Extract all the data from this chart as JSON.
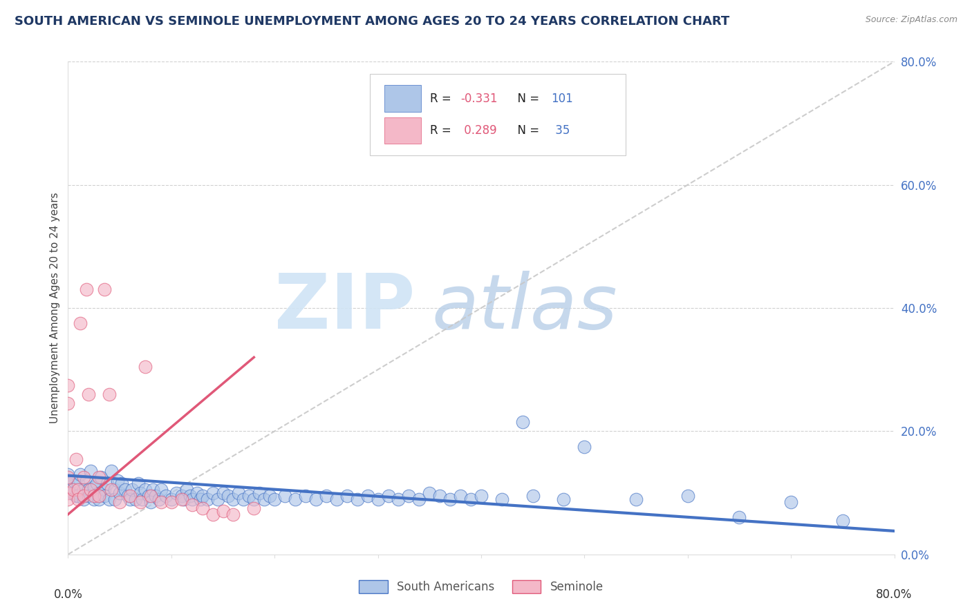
{
  "title": "SOUTH AMERICAN VS SEMINOLE UNEMPLOYMENT AMONG AGES 20 TO 24 YEARS CORRELATION CHART",
  "source": "Source: ZipAtlas.com",
  "ylabel": "Unemployment Among Ages 20 to 24 years",
  "south_american_color": "#aec6e8",
  "seminole_color": "#f4b8c8",
  "trend_sa_color": "#4472c4",
  "trend_sem_color": "#e05878",
  "watermark_zip": "ZIP",
  "watermark_atlas": "atlas",
  "xlim": [
    0.0,
    0.8
  ],
  "ylim": [
    0.0,
    0.8
  ],
  "legend_r1": "R = -0.331",
  "legend_n1": "N = 101",
  "legend_r2": "R =  0.289",
  "legend_n2": "N =  35",
  "legend_label1": "South Americans",
  "legend_label2": "Seminole",
  "south_american_points": [
    [
      0.0,
      0.13
    ],
    [
      0.0,
      0.115
    ],
    [
      0.003,
      0.1
    ],
    [
      0.005,
      0.12
    ],
    [
      0.005,
      0.1
    ],
    [
      0.008,
      0.095
    ],
    [
      0.01,
      0.115
    ],
    [
      0.01,
      0.095
    ],
    [
      0.012,
      0.13
    ],
    [
      0.015,
      0.105
    ],
    [
      0.015,
      0.09
    ],
    [
      0.018,
      0.12
    ],
    [
      0.02,
      0.105
    ],
    [
      0.02,
      0.095
    ],
    [
      0.022,
      0.135
    ],
    [
      0.025,
      0.11
    ],
    [
      0.025,
      0.09
    ],
    [
      0.028,
      0.115
    ],
    [
      0.03,
      0.1
    ],
    [
      0.03,
      0.09
    ],
    [
      0.032,
      0.125
    ],
    [
      0.035,
      0.105
    ],
    [
      0.035,
      0.095
    ],
    [
      0.038,
      0.115
    ],
    [
      0.04,
      0.09
    ],
    [
      0.042,
      0.135
    ],
    [
      0.045,
      0.105
    ],
    [
      0.045,
      0.09
    ],
    [
      0.048,
      0.12
    ],
    [
      0.05,
      0.1
    ],
    [
      0.052,
      0.115
    ],
    [
      0.055,
      0.105
    ],
    [
      0.058,
      0.095
    ],
    [
      0.06,
      0.09
    ],
    [
      0.062,
      0.105
    ],
    [
      0.065,
      0.09
    ],
    [
      0.068,
      0.115
    ],
    [
      0.07,
      0.1
    ],
    [
      0.072,
      0.09
    ],
    [
      0.075,
      0.105
    ],
    [
      0.078,
      0.095
    ],
    [
      0.08,
      0.085
    ],
    [
      0.082,
      0.105
    ],
    [
      0.085,
      0.095
    ],
    [
      0.088,
      0.09
    ],
    [
      0.09,
      0.105
    ],
    [
      0.095,
      0.095
    ],
    [
      0.1,
      0.09
    ],
    [
      0.105,
      0.1
    ],
    [
      0.11,
      0.095
    ],
    [
      0.112,
      0.09
    ],
    [
      0.115,
      0.105
    ],
    [
      0.118,
      0.095
    ],
    [
      0.12,
      0.09
    ],
    [
      0.125,
      0.1
    ],
    [
      0.128,
      0.09
    ],
    [
      0.13,
      0.095
    ],
    [
      0.135,
      0.09
    ],
    [
      0.14,
      0.1
    ],
    [
      0.145,
      0.09
    ],
    [
      0.15,
      0.1
    ],
    [
      0.155,
      0.095
    ],
    [
      0.16,
      0.09
    ],
    [
      0.165,
      0.1
    ],
    [
      0.17,
      0.09
    ],
    [
      0.175,
      0.095
    ],
    [
      0.18,
      0.09
    ],
    [
      0.185,
      0.1
    ],
    [
      0.19,
      0.09
    ],
    [
      0.195,
      0.095
    ],
    [
      0.2,
      0.09
    ],
    [
      0.21,
      0.095
    ],
    [
      0.22,
      0.09
    ],
    [
      0.23,
      0.095
    ],
    [
      0.24,
      0.09
    ],
    [
      0.25,
      0.095
    ],
    [
      0.26,
      0.09
    ],
    [
      0.27,
      0.095
    ],
    [
      0.28,
      0.09
    ],
    [
      0.29,
      0.095
    ],
    [
      0.3,
      0.09
    ],
    [
      0.31,
      0.095
    ],
    [
      0.32,
      0.09
    ],
    [
      0.33,
      0.095
    ],
    [
      0.34,
      0.09
    ],
    [
      0.35,
      0.1
    ],
    [
      0.36,
      0.095
    ],
    [
      0.37,
      0.09
    ],
    [
      0.38,
      0.095
    ],
    [
      0.39,
      0.09
    ],
    [
      0.4,
      0.095
    ],
    [
      0.42,
      0.09
    ],
    [
      0.44,
      0.215
    ],
    [
      0.45,
      0.095
    ],
    [
      0.48,
      0.09
    ],
    [
      0.5,
      0.175
    ],
    [
      0.55,
      0.09
    ],
    [
      0.6,
      0.095
    ],
    [
      0.65,
      0.06
    ],
    [
      0.7,
      0.085
    ],
    [
      0.75,
      0.055
    ]
  ],
  "seminole_points": [
    [
      0.0,
      0.275
    ],
    [
      0.0,
      0.245
    ],
    [
      0.0,
      0.125
    ],
    [
      0.0,
      0.1
    ],
    [
      0.0,
      0.09
    ],
    [
      0.005,
      0.105
    ],
    [
      0.008,
      0.155
    ],
    [
      0.01,
      0.105
    ],
    [
      0.01,
      0.09
    ],
    [
      0.012,
      0.375
    ],
    [
      0.015,
      0.125
    ],
    [
      0.015,
      0.095
    ],
    [
      0.018,
      0.43
    ],
    [
      0.02,
      0.26
    ],
    [
      0.022,
      0.105
    ],
    [
      0.025,
      0.095
    ],
    [
      0.03,
      0.125
    ],
    [
      0.03,
      0.095
    ],
    [
      0.035,
      0.43
    ],
    [
      0.04,
      0.26
    ],
    [
      0.042,
      0.105
    ],
    [
      0.05,
      0.085
    ],
    [
      0.06,
      0.095
    ],
    [
      0.07,
      0.085
    ],
    [
      0.075,
      0.305
    ],
    [
      0.08,
      0.095
    ],
    [
      0.09,
      0.085
    ],
    [
      0.1,
      0.085
    ],
    [
      0.11,
      0.09
    ],
    [
      0.12,
      0.08
    ],
    [
      0.13,
      0.075
    ],
    [
      0.14,
      0.065
    ],
    [
      0.15,
      0.07
    ],
    [
      0.16,
      0.065
    ],
    [
      0.18,
      0.075
    ]
  ],
  "sa_trend_x": [
    0.0,
    0.8
  ],
  "sa_trend_y": [
    0.128,
    0.038
  ],
  "sem_trend_x": [
    0.0,
    0.18
  ],
  "sem_trend_y": [
    0.065,
    0.32
  ]
}
